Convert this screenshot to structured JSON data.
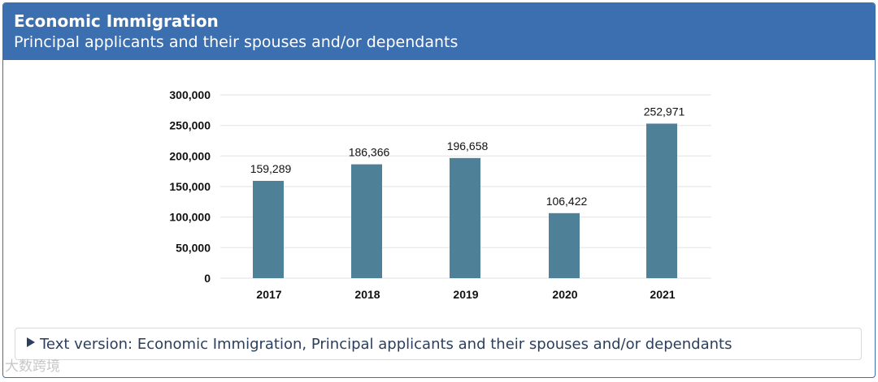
{
  "header": {
    "title": "Economic Immigration",
    "subtitle": "Principal applicants and their spouses and/or dependants"
  },
  "details": {
    "label": "Text version: Economic Immigration, Principal applicants and their spouses and/or dependants"
  },
  "watermark": "大数跨境",
  "colors": {
    "header_bg": "#3c6fb0",
    "bar": "#4e8198",
    "grid": "#e6e6e6"
  },
  "chart_data": {
    "type": "bar",
    "categories": [
      "2017",
      "2018",
      "2019",
      "2020",
      "2021"
    ],
    "values": [
      159289,
      186366,
      196658,
      106422,
      252971
    ],
    "data_labels": [
      "159,289",
      "186,366",
      "196,658",
      "106,422",
      "252,971"
    ],
    "yticks": [
      0,
      50000,
      100000,
      150000,
      200000,
      250000,
      300000
    ],
    "ytick_labels": [
      "0",
      "50,000",
      "100,000",
      "150,000",
      "200,000",
      "250,000",
      "300,000"
    ],
    "ylim": [
      0,
      300000
    ],
    "grid": true,
    "legend": "none"
  }
}
